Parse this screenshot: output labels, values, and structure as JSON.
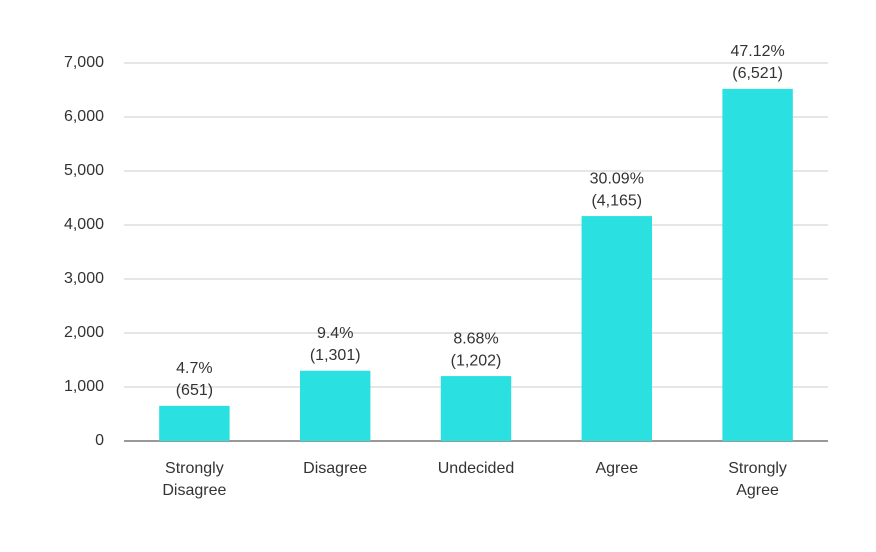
{
  "chart_data": {
    "type": "bar",
    "categories": [
      "Strongly Disagree",
      "Disagree",
      "Undecided",
      "Agree",
      "Strongly Agree"
    ],
    "values": [
      651,
      1301,
      1202,
      4165,
      6521
    ],
    "value_labels": [
      "(651)",
      "(1,301)",
      "(1,202)",
      "(4,165)",
      "(6,521)"
    ],
    "share_labels": [
      "4.7%",
      "9.4%",
      "8.68%",
      "30.09%",
      "47.12%"
    ],
    "color": "#2ae0e0",
    "ylim": [
      0,
      7000
    ],
    "yticks": [
      0,
      {
        "value": 1000,
        "label": "1,000"
      },
      {
        "value": 2000,
        "label": "2,000"
      },
      {
        "value": 3000,
        "label": "3,000"
      },
      {
        "value": 4000,
        "label": "4,000"
      },
      {
        "value": 5000,
        "label": "5,000"
      },
      {
        "value": 6000,
        "label": "6,000"
      },
      {
        "value": 7000,
        "label": "7,000"
      }
    ],
    "grid": true
  }
}
